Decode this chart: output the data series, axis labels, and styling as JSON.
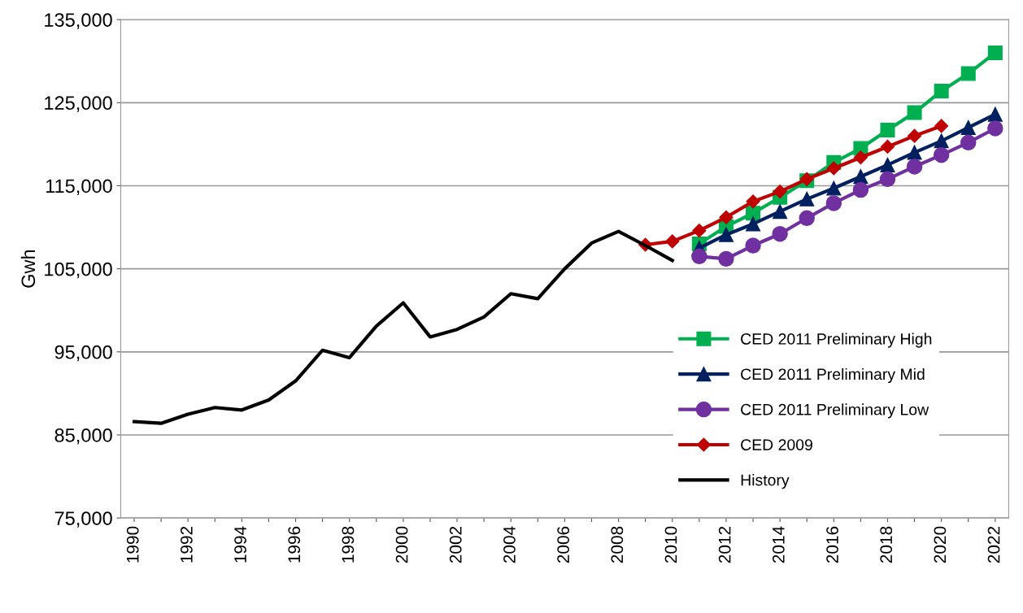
{
  "chart_data": {
    "type": "line",
    "ylabel": "Gwh",
    "categories": [
      "1990",
      null,
      "1992",
      null,
      "1994",
      null,
      "1996",
      null,
      "1998",
      null,
      "2000",
      null,
      "2002",
      null,
      "2004",
      null,
      "2006",
      null,
      "2008",
      null,
      "2010",
      null,
      "2012",
      null,
      "2014",
      null,
      "2016",
      null,
      "2018",
      null,
      "2020",
      null,
      "2022"
    ],
    "series": [
      {
        "name": "CED 2011 Preliminary High",
        "color": "#00b050",
        "marker": "square",
        "values": [
          null,
          null,
          null,
          null,
          null,
          null,
          null,
          null,
          null,
          null,
          null,
          null,
          null,
          null,
          null,
          null,
          null,
          null,
          null,
          null,
          null,
          108000,
          110100,
          111700,
          113600,
          115600,
          117800,
          119500,
          121700,
          123800,
          126400,
          128500,
          131000
        ]
      },
      {
        "name": "CED 2011 Preliminary Mid",
        "color": "#002060",
        "marker": "triangle",
        "values": [
          null,
          null,
          null,
          null,
          null,
          null,
          null,
          null,
          null,
          null,
          null,
          null,
          null,
          null,
          null,
          null,
          null,
          null,
          null,
          null,
          null,
          107500,
          109100,
          110400,
          111900,
          113400,
          114700,
          116100,
          117500,
          119000,
          120400,
          122000,
          123600
        ]
      },
      {
        "name": "CED 2011 Preliminary Low",
        "color": "#7030a0",
        "marker": "circle",
        "values": [
          null,
          null,
          null,
          null,
          null,
          null,
          null,
          null,
          null,
          null,
          null,
          null,
          null,
          null,
          null,
          null,
          null,
          null,
          null,
          null,
          null,
          106500,
          106200,
          107800,
          109200,
          111100,
          112900,
          114500,
          115800,
          117300,
          118700,
          120200,
          121900
        ]
      },
      {
        "name": "CED 2009",
        "color": "#c00000",
        "marker": "diamond",
        "values": [
          null,
          null,
          null,
          null,
          null,
          null,
          null,
          null,
          null,
          null,
          null,
          null,
          null,
          null,
          null,
          null,
          null,
          null,
          null,
          107900,
          108300,
          109600,
          111200,
          113100,
          114300,
          115800,
          117100,
          118400,
          119700,
          121000,
          122200,
          null,
          null
        ]
      },
      {
        "name": "History",
        "color": "#000000",
        "marker": "none",
        "values": [
          86600,
          86400,
          87500,
          88300,
          88000,
          89200,
          91500,
          95200,
          94300,
          98100,
          100900,
          96800,
          97700,
          99200,
          102000,
          101400,
          105000,
          108100,
          109500,
          107800,
          106000,
          null,
          null,
          null,
          null,
          null,
          null,
          null,
          null,
          null,
          null,
          null,
          null
        ]
      }
    ],
    "ylim": [
      75000,
      135000
    ],
    "yticks": [
      {
        "value": 75000,
        "label": "75,000"
      },
      {
        "value": 85000,
        "label": "85,000"
      },
      {
        "value": 95000,
        "label": "95,000"
      },
      {
        "value": 105000,
        "label": "105,000"
      },
      {
        "value": 115000,
        "label": "115,000"
      },
      {
        "value": 125000,
        "label": "125,000"
      },
      {
        "value": 135000,
        "label": "135,000"
      }
    ],
    "grid": "y",
    "legend": "right",
    "line_style": "solid"
  }
}
